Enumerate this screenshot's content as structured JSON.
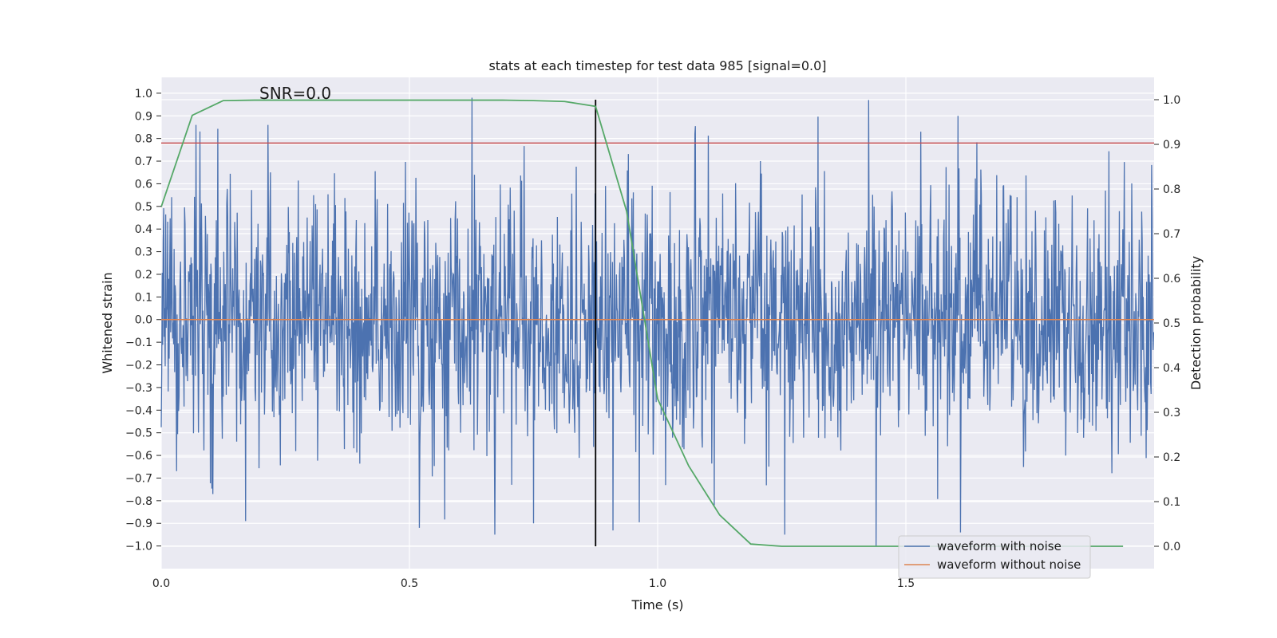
{
  "chart_data": {
    "type": "line",
    "title": "stats at each timestep for test data 985 [signal=0.0]",
    "annotation": "SNR=0.0",
    "xlabel": "Time (s)",
    "ylabel_left": "Whitened strain",
    "ylabel_right": "Detection probability",
    "xlim": [
      0.0,
      2.0
    ],
    "ylim_left": [
      -1.1,
      1.07
    ],
    "ylim_right": [
      -0.05,
      1.05
    ],
    "x_ticks": [
      0.0,
      0.5,
      1.0,
      1.5
    ],
    "x_tick_labels": [
      "0.0",
      "0.5",
      "1.0",
      "1.5"
    ],
    "y_left_ticks": [
      1.0,
      0.9,
      0.8,
      0.7,
      0.6,
      0.5,
      0.4,
      0.3,
      0.2,
      0.1,
      0.0,
      -0.1,
      -0.2,
      -0.3,
      -0.4,
      -0.5,
      -0.6,
      -0.7,
      -0.8,
      -0.9,
      -1.0
    ],
    "y_left_tick_labels": [
      "1.0",
      "0.9",
      "0.8",
      "0.7",
      "0.6",
      "0.5",
      "0.4",
      "0.3",
      "0.2",
      "0.1",
      "0.0",
      "−0.1",
      "−0.2",
      "−0.3",
      "−0.4",
      "−0.5",
      "−0.6",
      "−0.7",
      "−0.8",
      "−0.9",
      "−1.0"
    ],
    "y_right_ticks": [
      1.0,
      0.9,
      0.8,
      0.7,
      0.6,
      0.5,
      0.4,
      0.3,
      0.2,
      0.1,
      0.0
    ],
    "y_right_tick_labels": [
      "1.0",
      "0.9",
      "0.8",
      "0.7",
      "0.6",
      "0.5",
      "0.4",
      "0.3",
      "0.2",
      "0.1",
      "0.0"
    ],
    "threshold_strain": 0.78,
    "event_time_s": 0.875,
    "series": [
      {
        "name": "waveform with noise",
        "color": "#4c72b0",
        "axis": "left",
        "description": "noise-dominated whitened strain, ~2048 samples over 2 s, range approx -1.0 to 0.98",
        "notable_points": [
          {
            "x": 0.626,
            "y": 0.98
          },
          {
            "x": 1.425,
            "y": 0.97
          },
          {
            "x": 1.075,
            "y": 0.82
          },
          {
            "x": 1.53,
            "y": 0.83
          },
          {
            "x": 0.215,
            "y": 0.86
          },
          {
            "x": 0.07,
            "y": 0.86
          },
          {
            "x": 0.17,
            "y": -0.89
          },
          {
            "x": 0.52,
            "y": -0.92
          },
          {
            "x": 0.75,
            "y": -0.9
          },
          {
            "x": 1.44,
            "y": -1.0
          },
          {
            "x": 1.61,
            "y": -0.94
          }
        ]
      },
      {
        "name": "waveform without noise",
        "color": "#dd8452",
        "axis": "left",
        "x": [
          0.0,
          2.0
        ],
        "y": [
          0.0,
          0.0
        ]
      },
      {
        "name": "detection probability",
        "color": "#55a868",
        "axis": "right",
        "x": [
          0.0,
          0.0625,
          0.125,
          0.1875,
          0.25,
          0.3125,
          0.375,
          0.4375,
          0.5,
          0.5625,
          0.625,
          0.6875,
          0.75,
          0.8125,
          0.875,
          0.9375,
          1.0,
          1.0625,
          1.125,
          1.1875,
          1.25,
          1.3125,
          1.375,
          1.4375,
          1.5,
          1.5625,
          1.625,
          1.6875,
          1.75,
          1.8125,
          1.875,
          1.9375
        ],
        "y": [
          0.76,
          0.965,
          0.998,
          0.999,
          0.999,
          0.999,
          0.999,
          0.999,
          0.999,
          0.999,
          0.999,
          0.999,
          0.998,
          0.996,
          0.985,
          0.75,
          0.33,
          0.18,
          0.07,
          0.005,
          0.0,
          0.0,
          0.0,
          0.0,
          0.0,
          0.0,
          0.0,
          0.0,
          0.0,
          0.0,
          0.0,
          0.0
        ]
      }
    ],
    "legend": {
      "placement": "bottom-right",
      "entries": [
        {
          "label": "waveform with noise",
          "color": "#4c72b0"
        },
        {
          "label": "waveform without noise",
          "color": "#dd8452"
        }
      ]
    },
    "colors": {
      "background": "#eaeaf2",
      "grid": "#ffffff",
      "threshold": "#c44e52",
      "event_line": "#000000"
    }
  }
}
